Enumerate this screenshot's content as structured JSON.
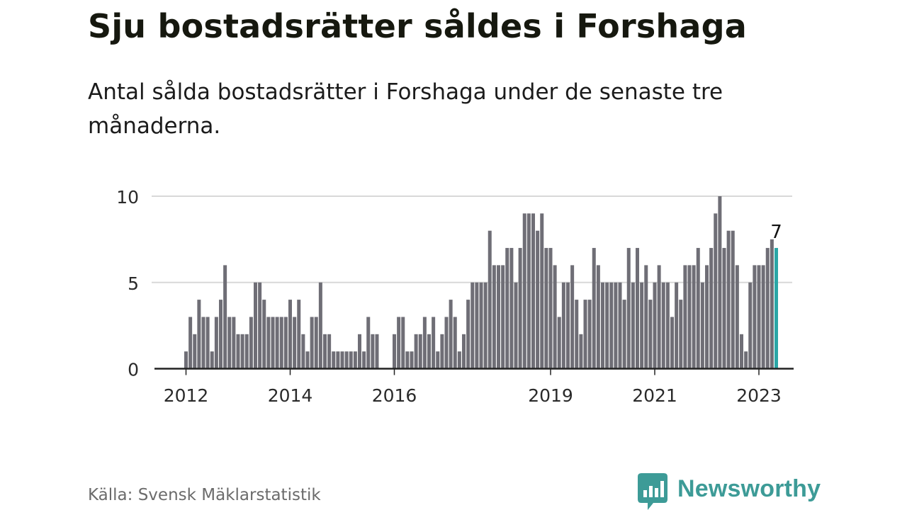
{
  "header": {
    "title": "Sju bostadsrätter såldes i Forshaga",
    "subtitle": "Antal sålda bostadsrätter i Forshaga under de senaste tre månaderna."
  },
  "footer": {
    "source": "Källa: Svensk Mäklarstatistik",
    "brand": "Newsworthy"
  },
  "colors": {
    "bar": "#6f6e76",
    "highlight": "#2aa6a6",
    "grid": "#d8d8d8",
    "axis": "#222222",
    "brand": "#3d9b97"
  },
  "chart_data": {
    "type": "bar",
    "xlabel": "",
    "ylabel": "",
    "ylim": [
      0,
      10
    ],
    "yticks": [
      0,
      5,
      10
    ],
    "grid": true,
    "start": "2012-01",
    "xtick_labels": [
      {
        "label": "2012",
        "month": "2012-01"
      },
      {
        "label": "2014",
        "month": "2014-01"
      },
      {
        "label": "2016",
        "month": "2016-01"
      },
      {
        "label": "2019",
        "month": "2019-01"
      },
      {
        "label": "2021",
        "month": "2021-01"
      },
      {
        "label": "2023",
        "month": "2023-01"
      }
    ],
    "highlight_label": "7",
    "values": [
      1,
      3,
      2,
      4,
      3,
      3,
      1,
      3,
      4,
      6,
      3,
      3,
      2,
      2,
      2,
      3,
      5,
      5,
      4,
      3,
      3,
      3,
      3,
      3,
      4,
      3,
      4,
      2,
      1,
      3,
      3,
      5,
      2,
      2,
      1,
      1,
      1,
      1,
      1,
      1,
      2,
      1,
      3,
      2,
      2,
      0,
      0,
      0,
      2,
      3,
      3,
      1,
      1,
      2,
      2,
      3,
      2,
      3,
      1,
      2,
      3,
      4,
      3,
      1,
      2,
      4,
      5,
      5,
      5,
      5,
      8,
      6,
      6,
      6,
      7,
      7,
      5,
      7,
      9,
      9,
      9,
      8,
      9,
      7,
      7,
      6,
      3,
      5,
      5,
      6,
      4,
      2,
      4,
      4,
      7,
      6,
      5,
      5,
      5,
      5,
      5,
      4,
      7,
      5,
      7,
      5,
      6,
      4,
      5,
      6,
      5,
      5,
      3,
      5,
      4,
      6,
      6,
      6,
      7,
      5,
      6,
      7,
      9,
      10,
      7,
      8,
      8,
      6,
      2,
      1,
      5,
      6,
      6,
      6,
      7,
      7.5,
      7
    ]
  }
}
